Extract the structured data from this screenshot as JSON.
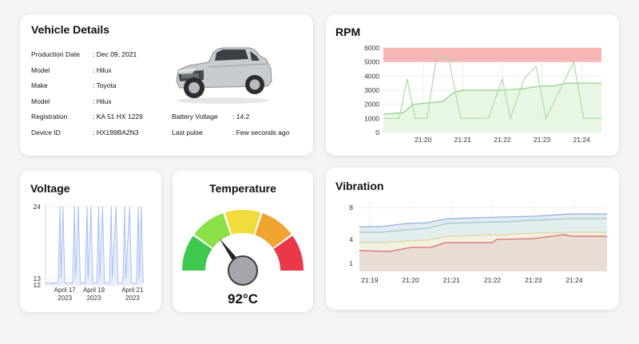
{
  "vehicle": {
    "title": "Vehicle Details",
    "fields": [
      {
        "label": "Production Date",
        "value": ": Dec 09, 2021"
      },
      {
        "label": "Model",
        "value": ": Hilux"
      },
      {
        "label": "Make",
        "value": ": Toyota"
      },
      {
        "label": "Model",
        "value": ": Hilux"
      },
      {
        "label": "Registration",
        "value": ": KA 51 HX 1229"
      },
      {
        "label": "Device ID",
        "value": ": HX199BA2N3"
      }
    ],
    "extra_fields": [
      {
        "label": "Battery Voltage",
        "value": ": 14.2"
      },
      {
        "label": "Last pulse",
        "value": ": Few seconds ago"
      }
    ]
  },
  "rpm": {
    "title": "RPM",
    "colors": {
      "line1": "#a9dea0",
      "line2": "#8bcf7e",
      "fill": "#e8f6e4",
      "band": "#f7b6b6"
    },
    "chart_data": {
      "type": "line",
      "ylim": [
        0,
        6000
      ],
      "yticks": [
        "0",
        "1000",
        "2000",
        "3000",
        "4000",
        "5000",
        "6000"
      ],
      "xticks": [
        {
          "label": "21:20",
          "x": 1
        },
        {
          "label": "21:21",
          "x": 2
        },
        {
          "label": "21:22",
          "x": 3
        },
        {
          "label": "21:23",
          "x": 4
        },
        {
          "label": "21:24",
          "x": 5
        }
      ],
      "band": [
        5000,
        6000
      ],
      "series": [
        {
          "points": [
            [
              0.0,
              1300
            ],
            [
              0.5,
              1400
            ],
            [
              0.75,
              2000
            ],
            [
              1.5,
              2200
            ],
            [
              1.75,
              2800
            ],
            [
              2.0,
              3000
            ],
            [
              2.5,
              3000
            ],
            [
              3.0,
              3000
            ],
            [
              3.5,
              3100
            ],
            [
              4.0,
              3300
            ],
            [
              4.3,
              3300
            ],
            [
              4.6,
              3500
            ],
            [
              5.5,
              3500
            ]
          ]
        },
        {
          "points": [
            [
              0.0,
              1000
            ],
            [
              0.4,
              1000
            ],
            [
              0.6,
              3800
            ],
            [
              0.8,
              1000
            ],
            [
              1.1,
              1000
            ],
            [
              1.35,
              5500
            ],
            [
              1.65,
              5200
            ],
            [
              1.95,
              1000
            ],
            [
              2.65,
              1000
            ],
            [
              3.0,
              3800
            ],
            [
              3.2,
              1000
            ],
            [
              3.55,
              3800
            ],
            [
              3.85,
              4700
            ],
            [
              4.1,
              1000
            ],
            [
              4.8,
              5000
            ],
            [
              5.05,
              1000
            ],
            [
              5.5,
              1000
            ]
          ]
        }
      ]
    }
  },
  "voltage": {
    "title": "Voltage",
    "colors": {
      "line": "#a8c0f0",
      "fill": "#e6eefc"
    },
    "chart_data": {
      "type": "line",
      "yticks": [
        {
          "label": "24",
          "value": 24
        },
        {
          "label": "13",
          "value": 13
        },
        {
          "label": "12",
          "value": 12
        }
      ],
      "xticks": [
        {
          "line1": "April 17",
          "line2": "2023",
          "x": 0.2
        },
        {
          "line1": "April 19",
          "line2": "2023",
          "x": 0.5
        },
        {
          "line1": "April 21",
          "line2": "2023",
          "x": 0.9
        }
      ],
      "spikes_x": [
        0.15,
        0.18,
        0.3,
        0.34,
        0.43,
        0.47,
        0.55,
        0.59,
        0.68,
        0.73,
        0.82,
        0.87,
        0.96,
        0.99
      ]
    }
  },
  "temperature": {
    "title": "Temperature",
    "value_text": "92°C",
    "fraction": 0.3,
    "segments": [
      "#3fc84e",
      "#8ce048",
      "#f0dc3c",
      "#f0a530",
      "#e8384a"
    ]
  },
  "vibration": {
    "title": "Vibration",
    "chart_data": {
      "type": "area",
      "yticks": [
        {
          "label": "8",
          "value": 8
        },
        {
          "label": "4",
          "value": 4
        },
        {
          "label": "1",
          "value": 1
        }
      ],
      "xticks": [
        {
          "label": "21:19",
          "x": 0
        },
        {
          "label": "21:20",
          "x": 1
        },
        {
          "label": "21:21",
          "x": 2
        },
        {
          "label": "21:22",
          "x": 3
        },
        {
          "label": "21:23",
          "x": 4
        },
        {
          "label": "21:24",
          "x": 5
        }
      ],
      "xlim": [
        -0.25,
        5.8
      ],
      "series": [
        {
          "color": "#8fb1d8",
          "fill": "#e2ebf4",
          "points": [
            [
              -0.25,
              5.6
            ],
            [
              0.25,
              5.6
            ],
            [
              0.9,
              6.0
            ],
            [
              1.4,
              6.1
            ],
            [
              1.9,
              6.6
            ],
            [
              2.5,
              6.7
            ],
            [
              3.2,
              6.8
            ],
            [
              4.0,
              6.9
            ],
            [
              4.9,
              7.2
            ],
            [
              5.8,
              7.2
            ]
          ]
        },
        {
          "color": "#9ec9c8",
          "fill": "#e2eeee",
          "points": [
            [
              -0.25,
              4.9
            ],
            [
              0.3,
              4.9
            ],
            [
              0.9,
              5.2
            ],
            [
              1.4,
              5.4
            ],
            [
              1.9,
              6.0
            ],
            [
              2.5,
              6.1
            ],
            [
              3.2,
              6.2
            ],
            [
              4.0,
              6.4
            ],
            [
              4.9,
              6.6
            ],
            [
              5.8,
              6.6
            ]
          ]
        },
        {
          "color": "#e0d59a",
          "fill": "#f2f0e0",
          "points": [
            [
              -0.25,
              3.6
            ],
            [
              0.3,
              3.6
            ],
            [
              0.9,
              3.8
            ],
            [
              1.4,
              3.9
            ],
            [
              1.9,
              4.4
            ],
            [
              2.5,
              4.5
            ],
            [
              3.2,
              4.6
            ],
            [
              4.0,
              4.8
            ],
            [
              4.9,
              4.9
            ],
            [
              5.8,
              4.9
            ]
          ]
        },
        {
          "color": "#d56a6a",
          "fill": "#e8dcd4",
          "points": [
            [
              -0.25,
              2.6
            ],
            [
              0.5,
              2.5
            ],
            [
              1.0,
              3.0
            ],
            [
              1.5,
              3.0
            ],
            [
              1.85,
              3.6
            ],
            [
              3.0,
              3.6
            ],
            [
              3.1,
              4.0
            ],
            [
              4.0,
              4.1
            ],
            [
              4.75,
              4.6
            ],
            [
              4.95,
              4.4
            ],
            [
              5.8,
              4.4
            ]
          ]
        }
      ]
    }
  }
}
